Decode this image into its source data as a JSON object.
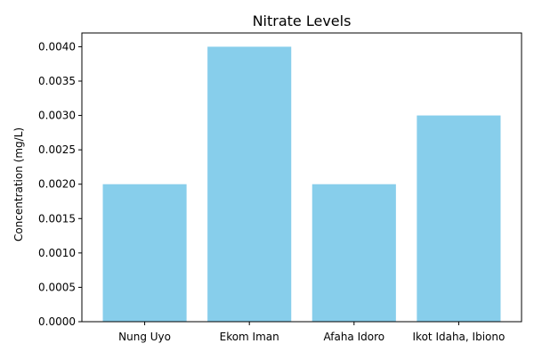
{
  "chart_data": {
    "type": "bar",
    "title": "Nitrate Levels",
    "xlabel": "",
    "ylabel": "Concentration (mg/L)",
    "categories": [
      "Nung Uyo",
      "Ekom Iman",
      "Afaha Idoro",
      "Ikot Idaha, Ibiono"
    ],
    "values": [
      0.002,
      0.004,
      0.002,
      0.003
    ],
    "ylim": [
      0,
      0.0042
    ],
    "yticks": [
      0.0,
      0.0005,
      0.001,
      0.0015,
      0.002,
      0.0025,
      0.003,
      0.0035,
      0.004
    ],
    "ytick_labels": [
      "0.0000",
      "0.0005",
      "0.0010",
      "0.0015",
      "0.0020",
      "0.0025",
      "0.0030",
      "0.0035",
      "0.0040"
    ],
    "bar_color": "#87ceeb",
    "grid": false,
    "legend": false
  }
}
